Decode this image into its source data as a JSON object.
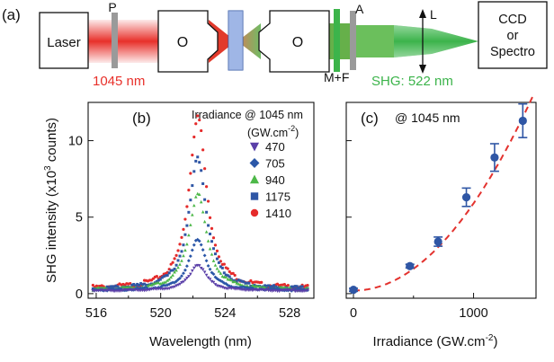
{
  "panel_a": {
    "label": "(a)",
    "laser": "Laser",
    "polarizer": "P",
    "objective_1": "O",
    "objective_2": "O",
    "mirror_filter": "M+F",
    "analyzer": "A",
    "lens": "L",
    "detector_line1": "CCD",
    "detector_line2": "or",
    "detector_line3": "Spectro",
    "pump_wavelength": "1045 nm",
    "shg_wavelength": "SHG: 522 nm",
    "colors": {
      "pump": "#e8302a",
      "shg": "#3cb44b",
      "sample": "#6b8fd6"
    }
  },
  "chart_data": [
    {
      "type": "scatter",
      "panel": "(b)",
      "title": "Irradiance @ 1045 nm",
      "legend_title_unit": "(GW.cm",
      "legend_title_exp": "-2",
      "legend_title_close": ")",
      "legend_placement": "top-right",
      "xlabel": "Wavelength (nm)",
      "ylabel_main": "SHG intensity (x10",
      "ylabel_exp": "3",
      "ylabel_end": " counts)",
      "xlim": [
        515.5,
        529.5
      ],
      "ylim": [
        -0.3,
        12.5
      ],
      "xticks": [
        "516",
        "520",
        "524",
        "528"
      ],
      "yticks": [
        "0",
        "5",
        "10"
      ],
      "peak_center": 522.3,
      "peak_width": 0.65,
      "series": [
        {
          "name": "470",
          "marker": "triangle-down",
          "color": "#5a3fa8",
          "peak": 1.7
        },
        {
          "name": "705",
          "marker": "diamond",
          "color": "#2b57a8",
          "peak": 3.3
        },
        {
          "name": "940",
          "marker": "triangle-up",
          "color": "#4db848",
          "peak": 6.3
        },
        {
          "name": "1175",
          "marker": "square",
          "color": "#2f56a5",
          "peak": 8.6
        },
        {
          "name": "1410",
          "marker": "circle",
          "color": "#e52b2b",
          "peak": 11.3
        }
      ]
    },
    {
      "type": "scatter",
      "panel": "(c)",
      "title": "@ 1045 nm",
      "xlabel_main": "Irradiance  (GW.cm",
      "xlabel_exp": "-2",
      "xlabel_end": ")",
      "xlim": [
        -60,
        1520
      ],
      "ylim": [
        -0.3,
        12.5
      ],
      "xticks": [
        "0",
        "1000"
      ],
      "points": [
        {
          "x": 0,
          "y": 0.25,
          "err": 0.1
        },
        {
          "x": 470,
          "y": 1.8,
          "err": 0.12
        },
        {
          "x": 705,
          "y": 3.4,
          "err": 0.3
        },
        {
          "x": 940,
          "y": 6.3,
          "err": 0.6
        },
        {
          "x": 1175,
          "y": 8.9,
          "err": 0.9
        },
        {
          "x": 1410,
          "y": 11.3,
          "err": 1.1
        }
      ],
      "fit": {
        "type": "quadratic",
        "coef": 5.7e-06,
        "color": "#e3322e"
      },
      "point_color": "#2f56a5"
    }
  ]
}
